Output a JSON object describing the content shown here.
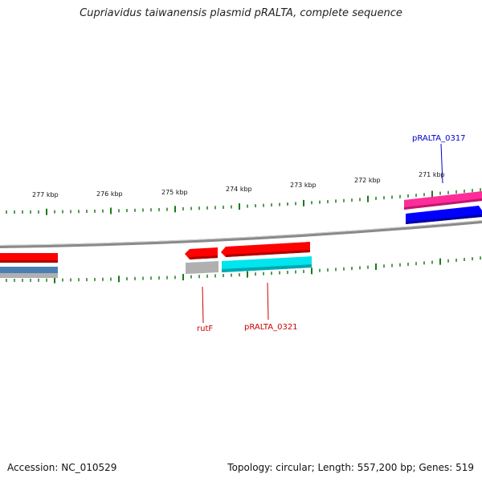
{
  "title": "Cupriavidus taiwanensis plasmid pRALTA, complete sequence",
  "footer": {
    "accession": "Accession: NC_010529",
    "summary": "Topology: circular; Length: 557,200 bp; Genes: 519"
  },
  "kbp_labels": [
    "277 kbp",
    "276 kbp",
    "275 kbp",
    "274 kbp",
    "273 kbp",
    "272 kbp",
    "271 kbp"
  ],
  "gene_labels": {
    "pRALTA_0317": {
      "text": "pRALTA_0317",
      "color": "#0000cc"
    },
    "rutF": {
      "text": "rutF",
      "color": "#cc0000"
    },
    "pRALTA_0321": {
      "text": "pRALTA_0321",
      "color": "#cc0000"
    }
  },
  "colors": {
    "backbone": "#8a8a8a",
    "ticks": "#1a7a1a",
    "forward_cds": "#ff0000",
    "reverse_cds_blue": "#0000ff",
    "pink_feature": "#ff2d9a",
    "cyan_feature": "#00e5ee",
    "gray_feature": "#b0b0b0",
    "steel_feature": "#4a7fb5"
  }
}
